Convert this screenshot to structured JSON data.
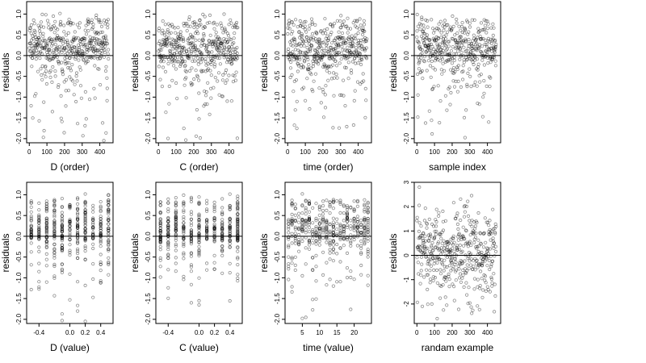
{
  "figure": {
    "background": "#ffffff",
    "point_style": "open circles",
    "point_color": "#000000"
  },
  "chart_data": [
    {
      "type": "scatter",
      "xlabel": "D (order)",
      "ylabel": "residuals",
      "xlim": [
        -15,
        475
      ],
      "ylim": [
        -2.1,
        1.3
      ],
      "xticks": [
        0,
        100,
        200,
        300,
        400
      ],
      "yticks": [
        -2.0,
        -1.5,
        -1.0,
        -0.5,
        0.0,
        0.5,
        1.0
      ],
      "ytick_labels": [
        "-2.0",
        "-1.5",
        "-1.0",
        "-0.5",
        "0.0",
        "0.5",
        "1.0"
      ],
      "reference_line": 0,
      "n_points": 450,
      "x_pattern": "order",
      "y_distribution": "residual",
      "seed": 11
    },
    {
      "type": "scatter",
      "xlabel": "C (order)",
      "ylabel": "residuals",
      "xlim": [
        -15,
        475
      ],
      "ylim": [
        -2.1,
        1.3
      ],
      "xticks": [
        0,
        100,
        200,
        300,
        400
      ],
      "yticks": [
        -2.0,
        -1.5,
        -1.0,
        -0.5,
        0.0,
        0.5,
        1.0
      ],
      "ytick_labels": [
        "-2.0",
        "-1.5",
        "-1.0",
        "-0.5",
        "0.0",
        "0.5",
        "1.0"
      ],
      "reference_line": 0,
      "n_points": 450,
      "x_pattern": "order",
      "y_distribution": "residual",
      "seed": 23
    },
    {
      "type": "scatter",
      "xlabel": "time (order)",
      "ylabel": "residuals",
      "xlim": [
        -15,
        475
      ],
      "ylim": [
        -2.1,
        1.3
      ],
      "xticks": [
        0,
        100,
        200,
        300,
        400
      ],
      "yticks": [
        -2.0,
        -1.5,
        -1.0,
        -0.5,
        0.0,
        0.5,
        1.0
      ],
      "ytick_labels": [
        "-2.0",
        "-1.5",
        "-1.0",
        "-0.5",
        "0.0",
        "0.5",
        "1.0"
      ],
      "reference_line": 0,
      "n_points": 450,
      "x_pattern": "order",
      "y_distribution": "residual",
      "seed": 37
    },
    {
      "type": "scatter",
      "xlabel": "sample index",
      "ylabel": "residuals",
      "xlim": [
        -15,
        475
      ],
      "ylim": [
        -2.1,
        1.3
      ],
      "xticks": [
        0,
        100,
        200,
        300,
        400
      ],
      "yticks": [
        -2.0,
        -1.5,
        -1.0,
        -0.5,
        0.0,
        0.5,
        1.0
      ],
      "ytick_labels": [
        "-2.0",
        "-1.5",
        "-1.0",
        "-0.5",
        "0.0",
        "0.5",
        "1.0"
      ],
      "reference_line": 0,
      "n_points": 450,
      "x_pattern": "order",
      "y_distribution": "residual",
      "seed": 41
    },
    {
      "type": "scatter",
      "xlabel": "D (value)",
      "ylabel": "residuals",
      "xlim": [
        -0.56,
        0.56
      ],
      "ylim": [
        -2.1,
        1.3
      ],
      "xticks": [
        -0.4,
        0.0,
        0.2,
        0.4
      ],
      "xtick_labels": [
        "-0.4",
        "0.0",
        "0.2",
        "0.4"
      ],
      "yticks": [
        -2.0,
        -1.5,
        -1.0,
        -0.5,
        0.0,
        0.5,
        1.0
      ],
      "ytick_labels": [
        "-2.0",
        "-1.5",
        "-1.0",
        "-0.5",
        "0.0",
        "0.5",
        "1.0"
      ],
      "reference_line": 0,
      "n_points": 450,
      "x_pattern": "discrete",
      "x_levels": [
        -0.5,
        -0.4,
        -0.3,
        -0.2,
        -0.1,
        0.0,
        0.1,
        0.2,
        0.3,
        0.4,
        0.5
      ],
      "y_distribution": "residual",
      "seed": 53
    },
    {
      "type": "scatter",
      "xlabel": "C (value)",
      "ylabel": "residuals",
      "xlim": [
        -0.56,
        0.56
      ],
      "ylim": [
        -2.1,
        1.3
      ],
      "xticks": [
        -0.4,
        0.0,
        0.2,
        0.4
      ],
      "xtick_labels": [
        "-0.4",
        "0.0",
        "0.2",
        "0.4"
      ],
      "yticks": [
        -2.0,
        -1.5,
        -1.0,
        -0.5,
        0.0,
        0.5,
        1.0
      ],
      "ytick_labels": [
        "-2.0",
        "-1.5",
        "-1.0",
        "-0.5",
        "0.0",
        "0.5",
        "1.0"
      ],
      "reference_line": 0,
      "n_points": 450,
      "x_pattern": "discrete",
      "x_levels": [
        -0.5,
        -0.4,
        -0.3,
        -0.2,
        -0.1,
        0.0,
        0.1,
        0.2,
        0.3,
        0.4,
        0.5
      ],
      "y_distribution": "residual",
      "seed": 67
    },
    {
      "type": "scatter",
      "xlabel": "time (value)",
      "ylabel": "residuals",
      "xlim": [
        0,
        25
      ],
      "ylim": [
        -2.1,
        1.3
      ],
      "xticks": [
        5,
        10,
        15,
        20
      ],
      "xtick_labels": [
        "5",
        "10",
        "15",
        "20"
      ],
      "yticks": [
        -2.0,
        -1.5,
        -1.0,
        -0.5,
        0.0,
        0.5,
        1.0
      ],
      "ytick_labels": [
        "-2.0",
        "-1.5",
        "-1.0",
        "-0.5",
        "0.0",
        "0.5",
        "1.0"
      ],
      "reference_line": 0,
      "n_points": 450,
      "x_pattern": "discrete",
      "x_levels": [
        1,
        2,
        3,
        4,
        5,
        6,
        7,
        8,
        9,
        10,
        11,
        12,
        13,
        14,
        15,
        16,
        17,
        18,
        19,
        20,
        21,
        22,
        23,
        24
      ],
      "y_distribution": "residual",
      "seed": 79
    },
    {
      "type": "scatter",
      "xlabel": "randam example",
      "ylabel": "residuals",
      "xlim": [
        -15,
        475
      ],
      "ylim": [
        -2.8,
        3.0
      ],
      "xticks": [
        0,
        100,
        200,
        300,
        400
      ],
      "yticks": [
        -2,
        -1,
        0,
        1,
        2,
        3
      ],
      "ytick_labels": [
        "-2",
        "-1",
        "0",
        "1",
        "2",
        "3"
      ],
      "reference_line": 0,
      "n_points": 450,
      "x_pattern": "order",
      "y_distribution": "normal",
      "seed": 97
    }
  ]
}
